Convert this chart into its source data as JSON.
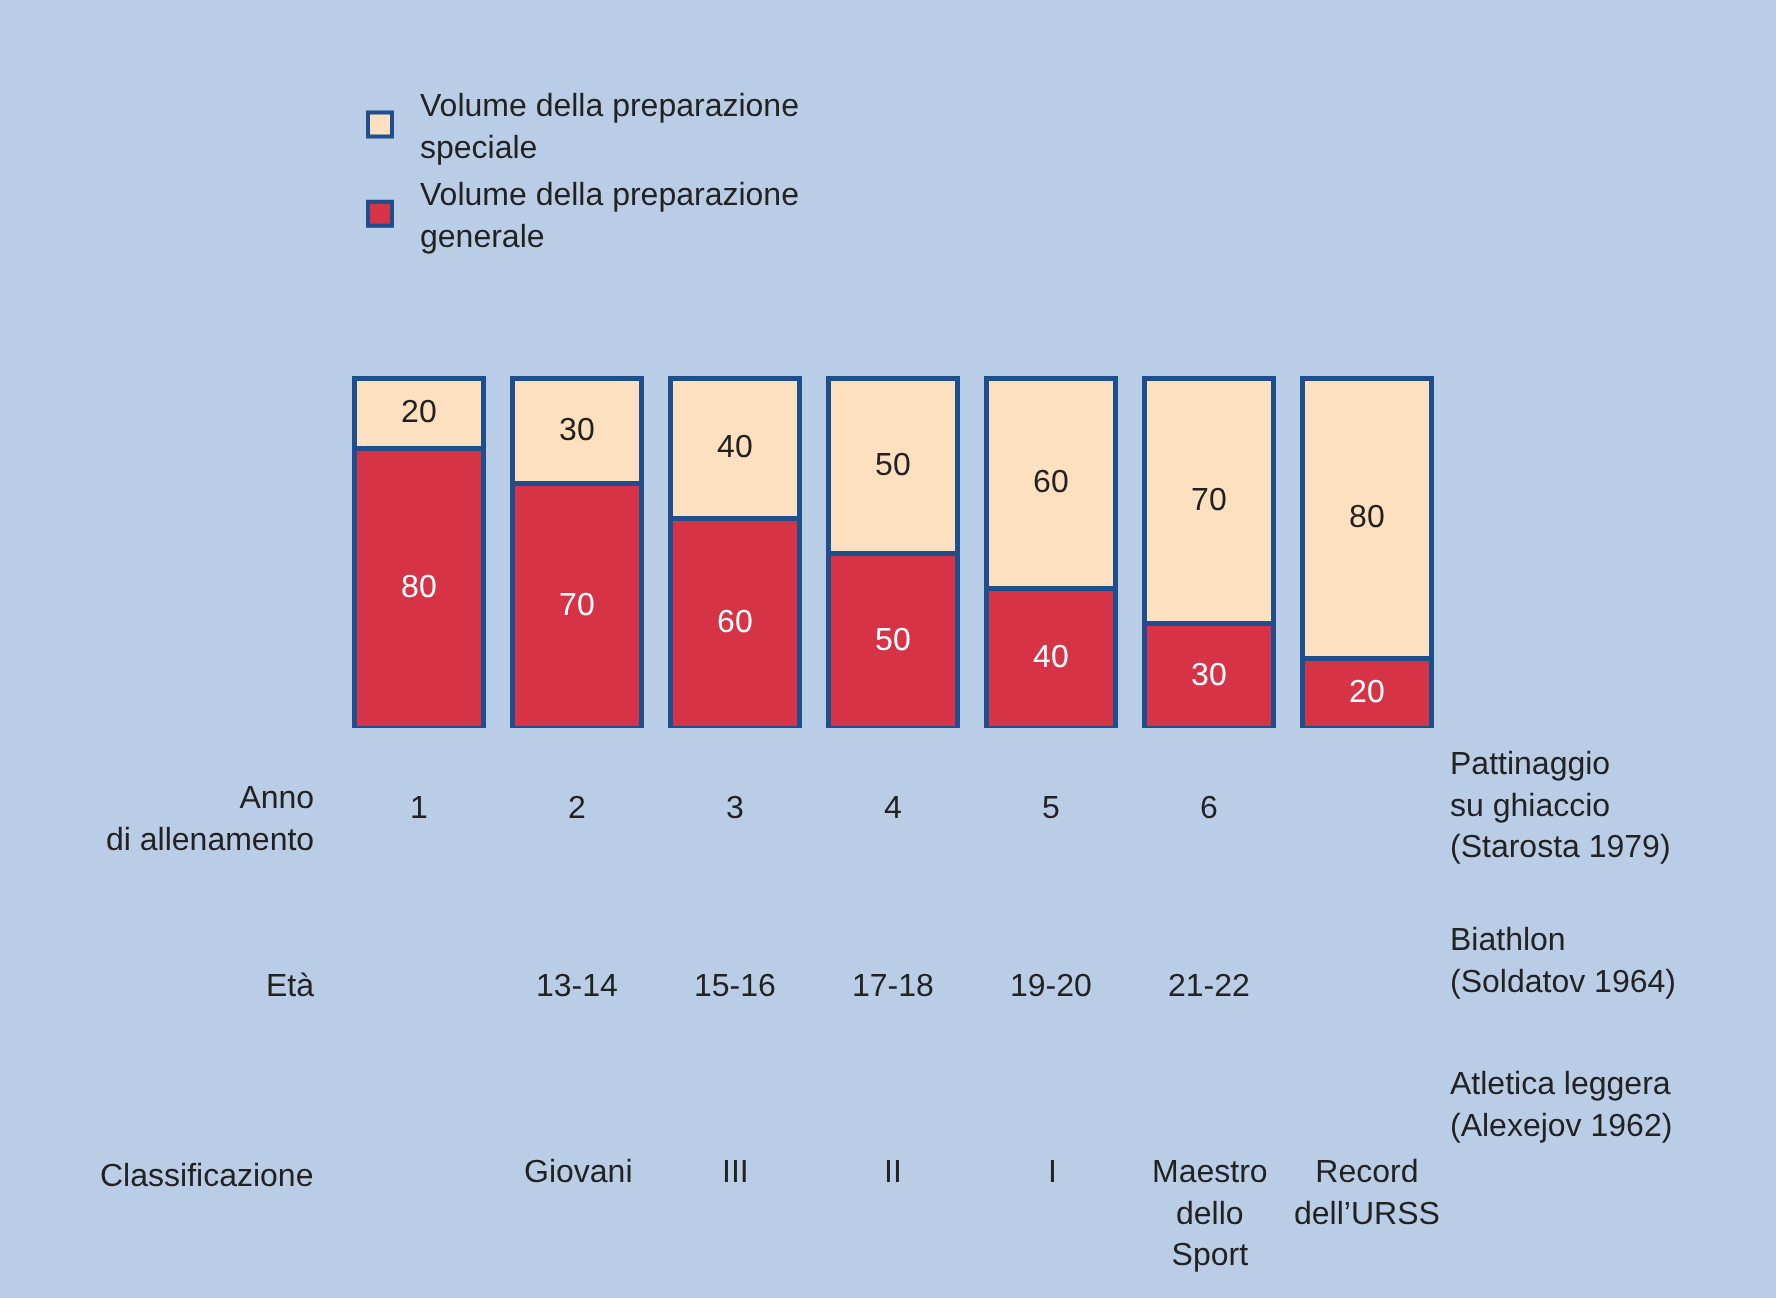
{
  "chart_data": {
    "type": "bar",
    "stacked": true,
    "data_labels": true,
    "legend": "top left",
    "grid": false,
    "categories": [
      "1",
      "2",
      "3",
      "4",
      "5",
      "6",
      null
    ],
    "series": [
      {
        "name": "Volume della preparazione\ngenerale",
        "color": "#d63347",
        "values": [
          80,
          70,
          60,
          50,
          40,
          30,
          20
        ]
      },
      {
        "name": "Volume della preparazione\nspeciale",
        "color": "#fde0bf",
        "values": [
          20,
          30,
          40,
          50,
          60,
          70,
          80
        ]
      }
    ],
    "annotations": [
      "Anno\ndi allenamento",
      "Età",
      "Classificazione",
      "13-14",
      "15-16",
      "17-18",
      "19-20",
      "21-22",
      "Giovani",
      "III",
      "II",
      "I",
      "Maestro\ndello\nSport",
      "Record\ndell’URSS",
      "Pattinaggio\nsu ghiaccio\n(Starosta 1979)",
      "Biathlon\n(Soldatov 1964)",
      "Atletica leggera\n(Alexejov 1962)"
    ]
  }
}
